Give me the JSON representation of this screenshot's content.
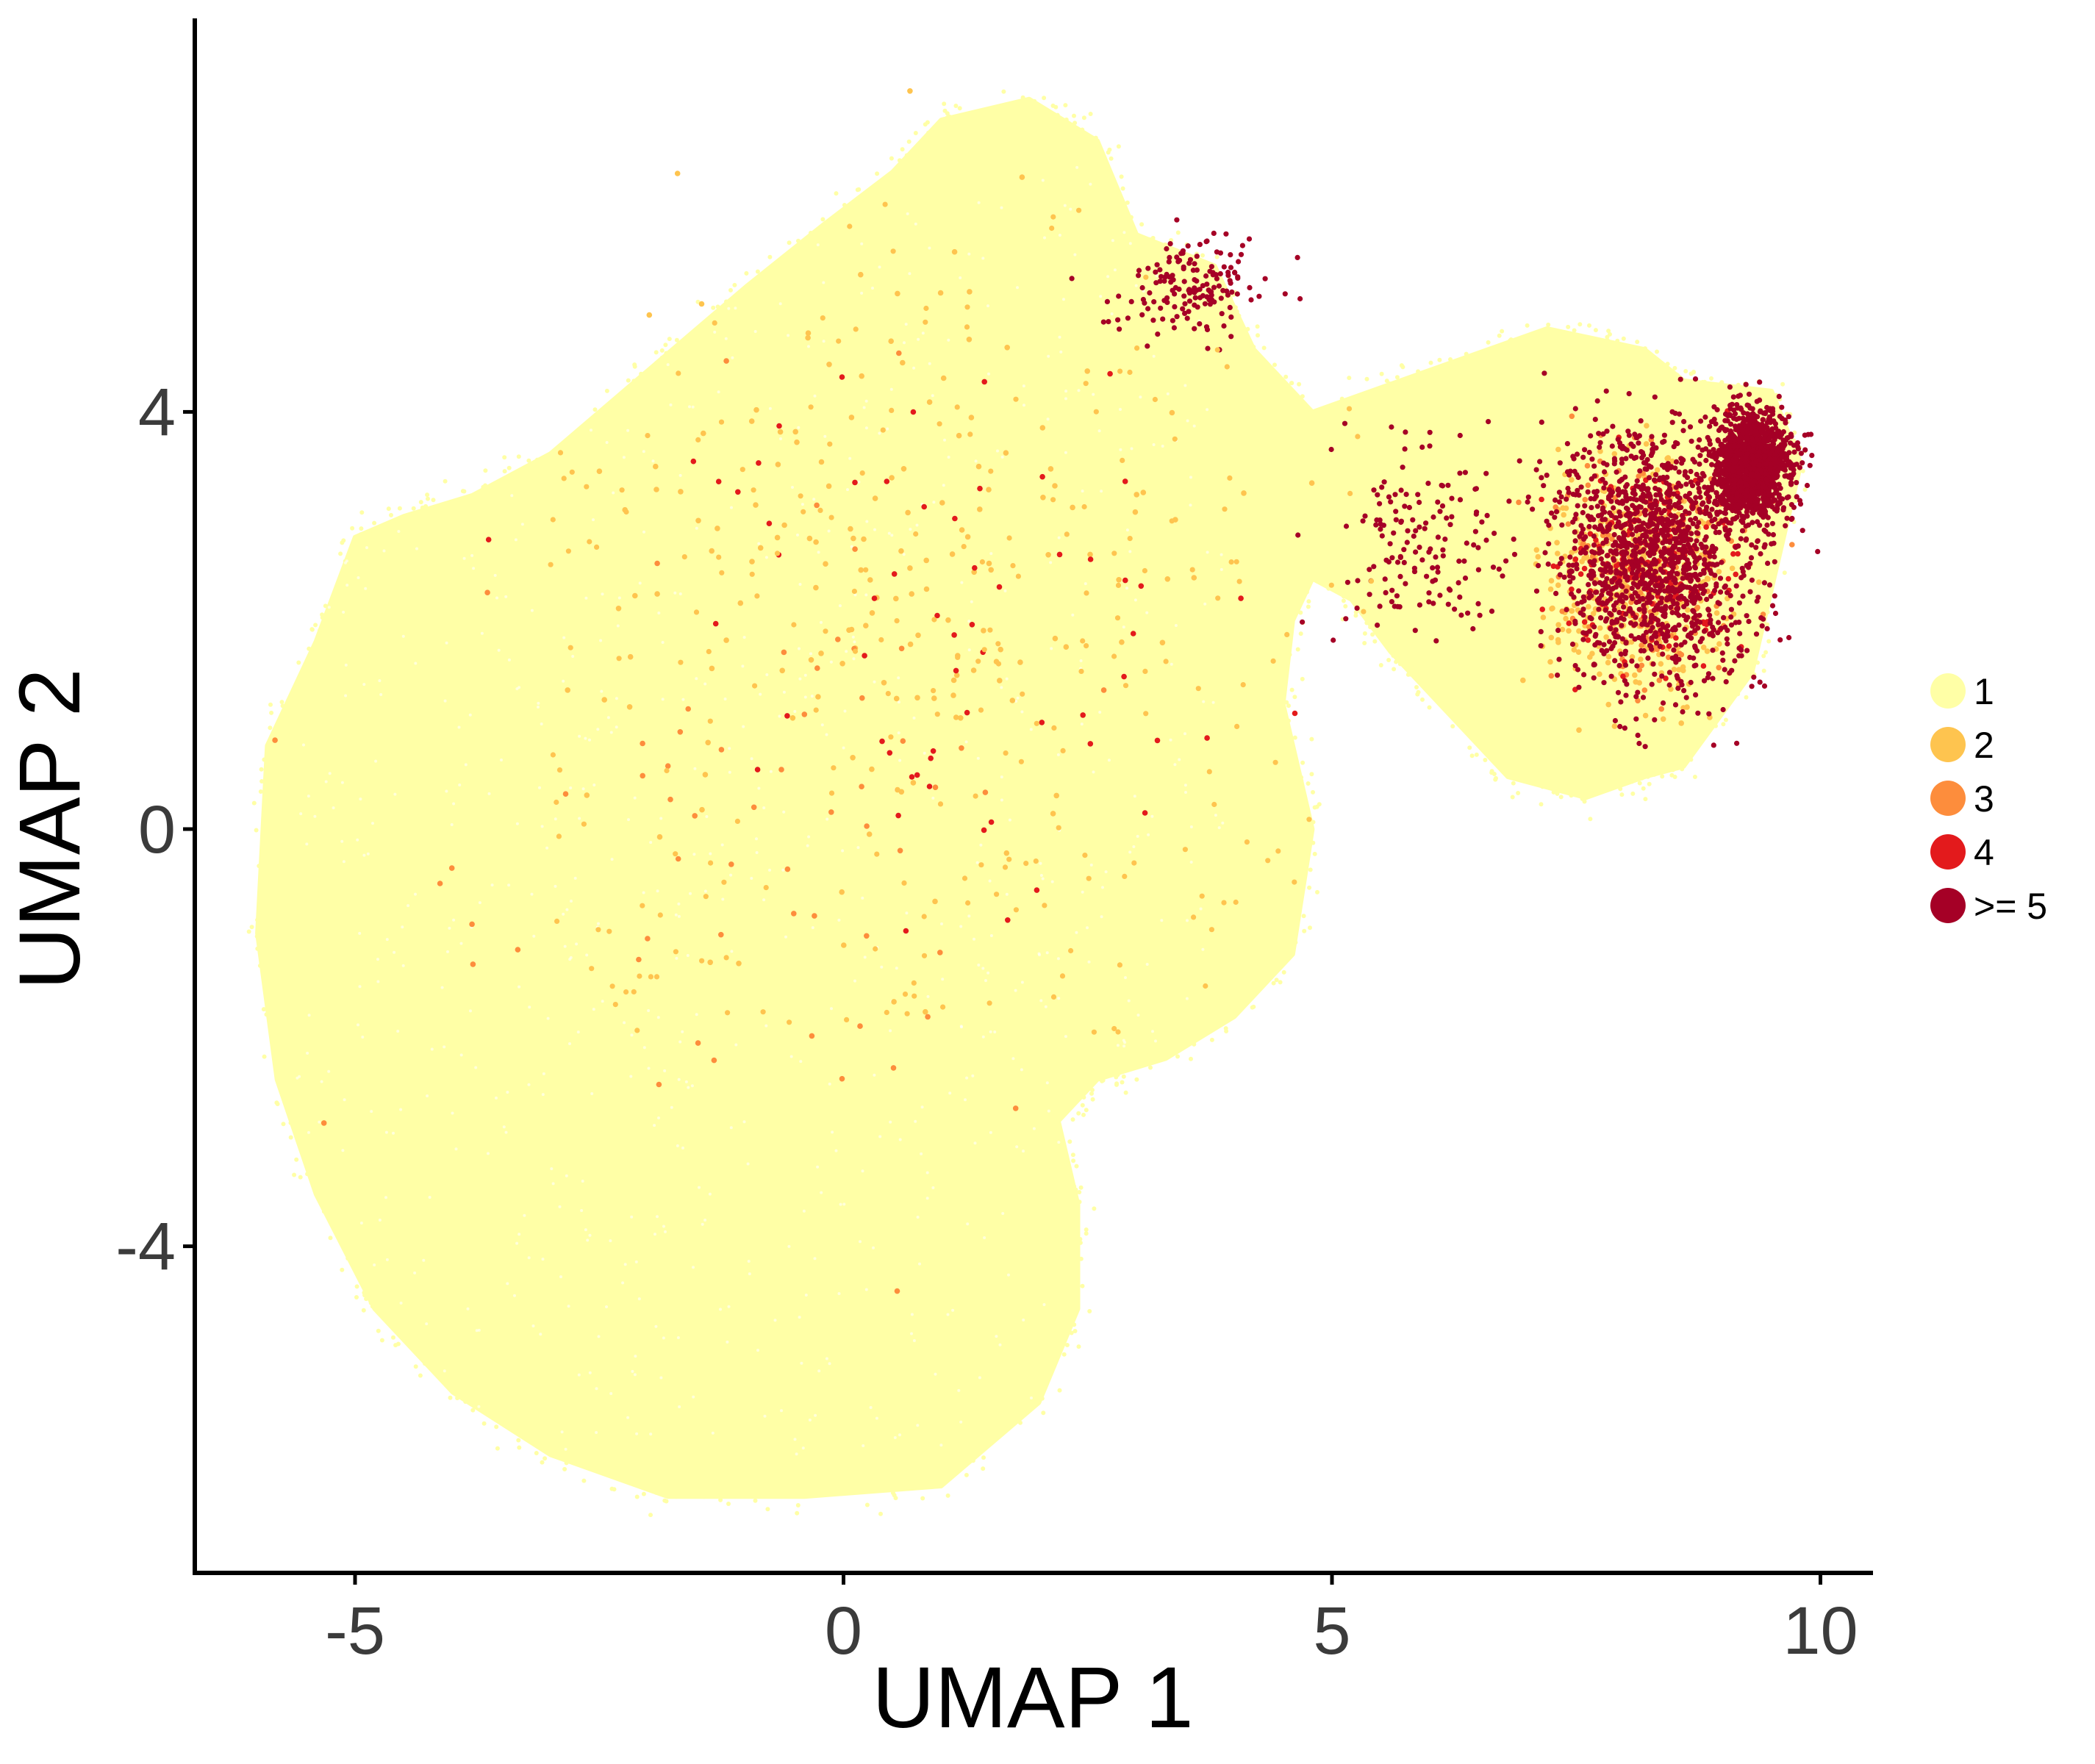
{
  "chart_data": {
    "type": "scatter",
    "xlabel": "UMAP 1",
    "ylabel": "UMAP 2",
    "xlim": [
      -6.5,
      10.6
    ],
    "ylim": [
      -7.2,
      7.8
    ],
    "x_ticks": [
      -5,
      0,
      5,
      10
    ],
    "x_tick_labels": [
      "-5",
      "0",
      "5",
      "10"
    ],
    "y_ticks": [
      4,
      0,
      -4
    ],
    "y_tick_labels": [
      "4",
      "0",
      "-4"
    ],
    "grid": false,
    "legend_position": "right",
    "legend": [
      {
        "label": "1",
        "color": "#FFFFA6"
      },
      {
        "label": "2",
        "color": "#FEC44F"
      },
      {
        "label": "3",
        "color": "#FD8D3C"
      },
      {
        "label": "4",
        "color": "#E31A1C"
      },
      {
        "label": ">= 5",
        "color": "#A50026"
      }
    ],
    "series": [
      {
        "legend_label": "1",
        "color": "#FFFFA6",
        "regions": [
          {
            "polygon": [
              [
                1.9,
                7.0
              ],
              [
                2.6,
                6.6
              ],
              [
                3.0,
                5.7
              ],
              [
                3.8,
                5.4
              ],
              [
                4.2,
                4.6
              ],
              [
                4.8,
                4.0
              ],
              [
                6.0,
                4.4
              ],
              [
                7.2,
                4.8
              ],
              [
                8.2,
                4.6
              ],
              [
                8.6,
                4.3
              ],
              [
                9.5,
                4.2
              ],
              [
                9.8,
                3.5
              ],
              [
                9.3,
                1.5
              ],
              [
                8.6,
                0.6
              ],
              [
                8.2,
                0.5
              ],
              [
                7.6,
                0.3
              ],
              [
                6.8,
                0.5
              ],
              [
                6.2,
                1.1
              ],
              [
                5.6,
                1.7
              ],
              [
                5.2,
                2.2
              ],
              [
                4.8,
                2.4
              ],
              [
                4.6,
                2.0
              ],
              [
                4.5,
                1.2
              ],
              [
                4.8,
                0.0
              ],
              [
                4.6,
                -1.2
              ],
              [
                4.0,
                -1.8
              ],
              [
                3.3,
                -2.2
              ],
              [
                2.6,
                -2.4
              ],
              [
                2.2,
                -2.8
              ],
              [
                2.4,
                -3.6
              ],
              [
                2.4,
                -4.6
              ],
              [
                2.0,
                -5.5
              ],
              [
                1.0,
                -6.3
              ],
              [
                -0.4,
                -6.4
              ],
              [
                -1.8,
                -6.4
              ],
              [
                -3.0,
                -6.0
              ],
              [
                -4.0,
                -5.4
              ],
              [
                -4.8,
                -4.6
              ],
              [
                -5.4,
                -3.5
              ],
              [
                -5.8,
                -2.4
              ],
              [
                -6.0,
                -1.0
              ],
              [
                -5.9,
                0.8
              ],
              [
                -5.4,
                1.8
              ],
              [
                -5.0,
                2.8
              ],
              [
                -4.5,
                3.0
              ],
              [
                -3.8,
                3.2
              ],
              [
                -3.0,
                3.6
              ],
              [
                -2.0,
                4.4
              ],
              [
                -1.0,
                5.2
              ],
              [
                -0.2,
                5.8
              ],
              [
                0.5,
                6.3
              ],
              [
                1.0,
                6.8
              ]
            ]
          }
        ],
        "sparse_overlay": {
          "x_range": [
            -3.0,
            5.5
          ],
          "y_range": [
            -2.0,
            6.0
          ],
          "approx_fraction_of_points": 0.02
        }
      },
      {
        "legend_label": "2",
        "color": "#FEC44F",
        "regions": [
          {
            "center": [
              8.1,
              2.4
            ],
            "spread": [
              0.8,
              1.0
            ],
            "density": "medium"
          },
          {
            "center": [
              0.5,
              2.5
            ],
            "spread": [
              2.6,
              2.8
            ],
            "density": "sparse"
          }
        ]
      },
      {
        "legend_label": "3",
        "color": "#FD8D3C",
        "regions": [
          {
            "center": [
              8.2,
              2.5
            ],
            "spread": [
              0.8,
              1.0
            ],
            "density": "sparse"
          },
          {
            "center": [
              -0.5,
              0.0
            ],
            "spread": [
              3.0,
              3.5
            ],
            "density": "very-sparse"
          }
        ]
      },
      {
        "legend_label": "4",
        "color": "#E31A1C",
        "regions": [
          {
            "center": [
              8.3,
              2.6
            ],
            "spread": [
              0.8,
              1.0
            ],
            "density": "sparse"
          },
          {
            "center": [
              1.0,
              2.0
            ],
            "spread": [
              2.5,
              2.5
            ],
            "density": "very-sparse"
          }
        ]
      },
      {
        "legend_label": ">= 5",
        "color": "#A50026",
        "regions": [
          {
            "center": [
              8.3,
              2.6
            ],
            "spread": [
              0.9,
              1.1
            ],
            "density": "dense"
          },
          {
            "center": [
              9.3,
              3.5
            ],
            "spread": [
              0.35,
              0.45
            ],
            "density": "dense"
          },
          {
            "center": [
              5.9,
              2.8
            ],
            "spread": [
              0.9,
              0.8
            ],
            "density": "sparse"
          },
          {
            "center": [
              3.6,
              5.2
            ],
            "spread": [
              0.7,
              0.4
            ],
            "density": "sparse"
          }
        ]
      }
    ]
  }
}
